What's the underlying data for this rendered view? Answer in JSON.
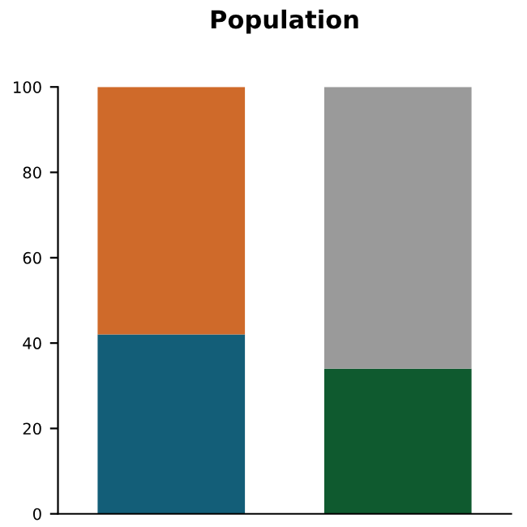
{
  "chart_data": {
    "type": "bar",
    "title": "Population",
    "stacked": true,
    "categories": [
      null,
      null
    ],
    "series": [
      {
        "colors": [
          "#135e78",
          "#0f5a2f"
        ],
        "values": [
          42,
          34
        ]
      },
      {
        "colors": [
          "#cf6a2a",
          "#9a9a9a"
        ],
        "values": [
          58,
          66
        ]
      }
    ],
    "ylim": [
      0,
      100
    ],
    "yticks": [
      0,
      20,
      40,
      60,
      80,
      100
    ],
    "grid": false,
    "legend": false
  }
}
